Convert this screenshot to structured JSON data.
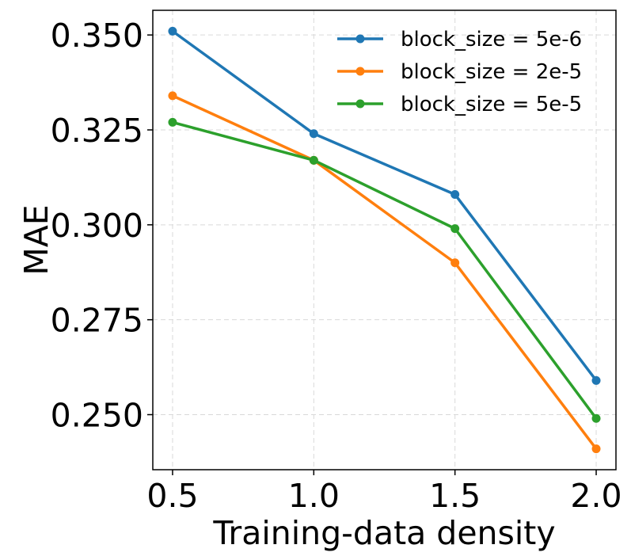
{
  "chart_data": {
    "type": "line",
    "title": "",
    "xlabel": "Training-data density",
    "ylabel": "MAE",
    "x": [
      0.5,
      1.0,
      1.5,
      2.0
    ],
    "xticks": [
      0.5,
      1.0,
      1.5,
      2.0
    ],
    "xtick_labels": [
      "0.5",
      "1.0",
      "1.5",
      "2.0"
    ],
    "yticks": [
      0.25,
      0.275,
      0.3,
      0.325,
      0.35
    ],
    "ytick_labels": [
      "0.250",
      "0.275",
      "0.300",
      "0.325",
      "0.350"
    ],
    "xlim": [
      0.43,
      2.07
    ],
    "ylim": [
      0.2355,
      0.3565
    ],
    "grid": true,
    "legend_position": "top-right",
    "series": [
      {
        "name": "block_size = 5e-6",
        "color": "#1f77b4",
        "values": [
          0.351,
          0.324,
          0.308,
          0.259
        ]
      },
      {
        "name": "block_size = 2e-5",
        "color": "#ff7f0e",
        "values": [
          0.334,
          0.317,
          0.29,
          0.241
        ]
      },
      {
        "name": "block_size = 5e-5",
        "color": "#2ca02c",
        "values": [
          0.327,
          0.317,
          0.299,
          0.249
        ]
      }
    ]
  }
}
